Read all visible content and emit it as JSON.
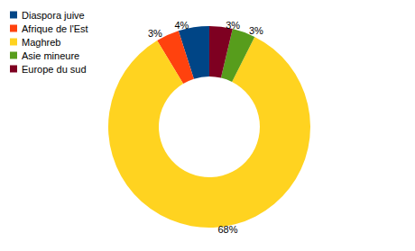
{
  "chart_data": {
    "type": "pie",
    "categories": [
      "Diaspora juive",
      "Afrique de l'Est",
      "Maghreb",
      "Asie mineure",
      "Europe du sud"
    ],
    "values": [
      4,
      3,
      68,
      3,
      3
    ],
    "value_labels": [
      "4%",
      "3%",
      "68%",
      "3%",
      "3%"
    ],
    "colors": [
      "#004586",
      "#ff420e",
      "#ffd320",
      "#579d1c",
      "#7e0021"
    ],
    "data_labels": true,
    "legend": "top-left"
  }
}
